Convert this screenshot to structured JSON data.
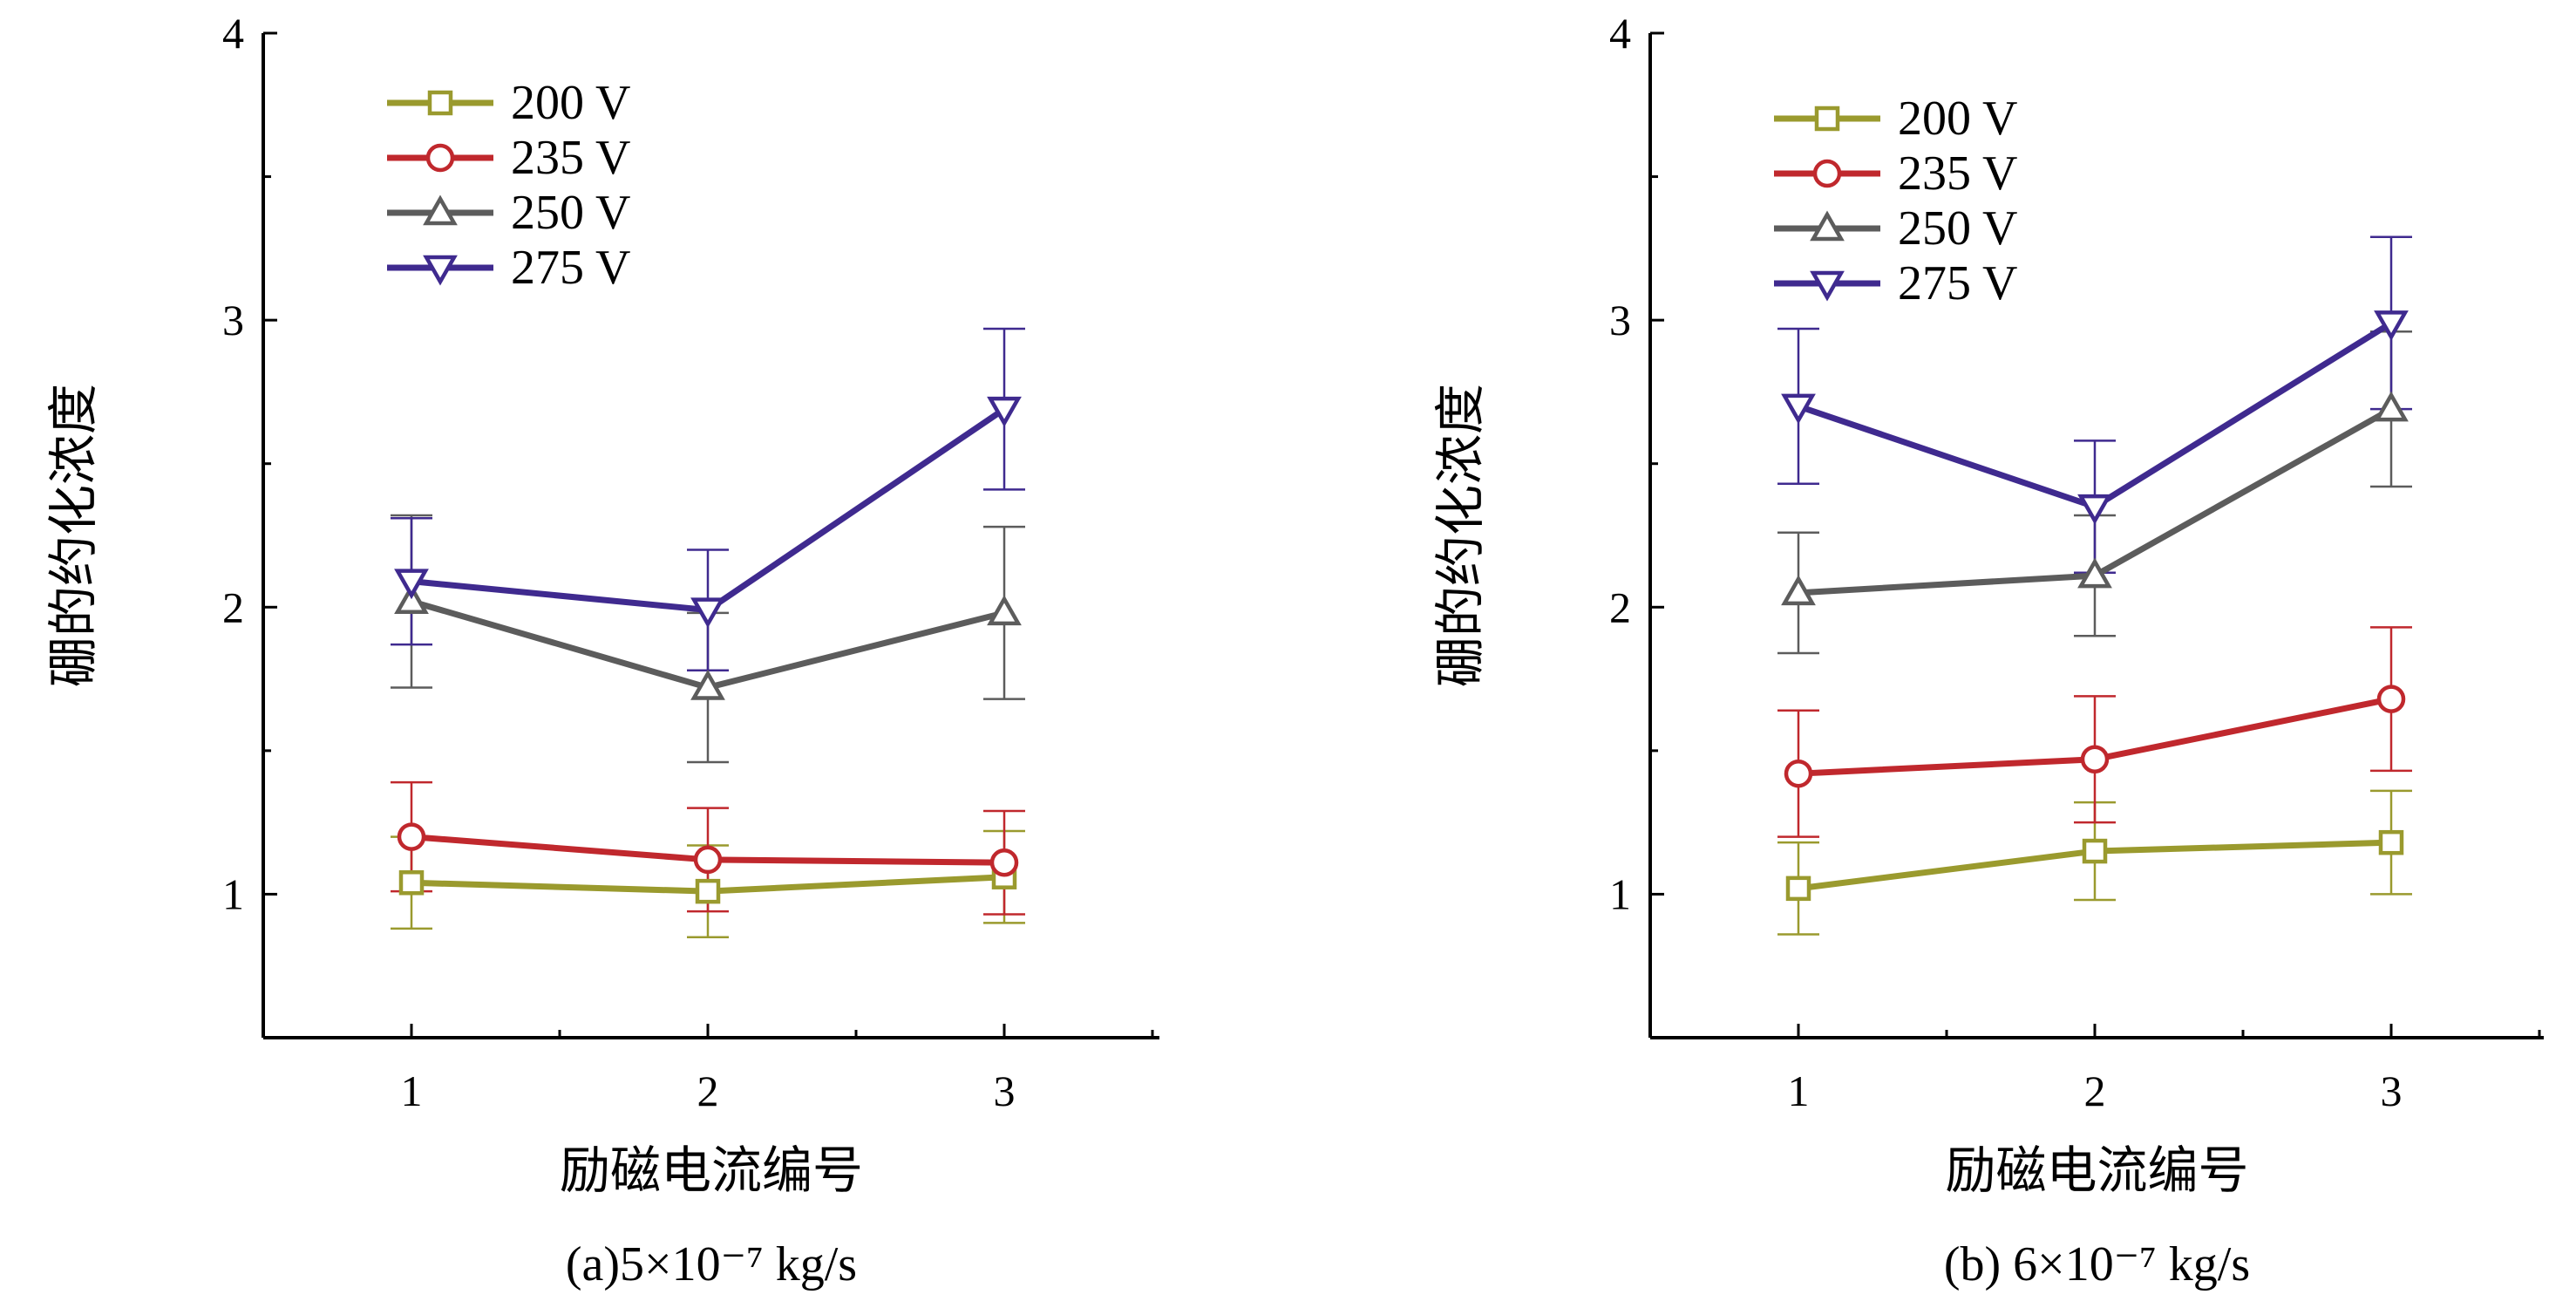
{
  "chart_data": [
    {
      "type": "line",
      "panel": "a",
      "caption": "(a)5×10⁻⁷ kg/s",
      "xlabel": "励磁电流编号",
      "ylabel": "硼的约化浓度",
      "x": [
        1,
        2,
        3
      ],
      "xticks": [
        "1",
        "2",
        "3"
      ],
      "ylim": [
        0.5,
        4
      ],
      "yticks": [
        "1",
        "2",
        "3",
        "4"
      ],
      "legend_position": "top-left",
      "series": [
        {
          "name": "200 V",
          "color": "#9a9a2e",
          "marker": "square",
          "values": [
            1.04,
            1.01,
            1.06
          ],
          "err": [
            0.16,
            0.16,
            0.16
          ]
        },
        {
          "name": "235 V",
          "color": "#c0282d",
          "marker": "circle",
          "values": [
            1.2,
            1.12,
            1.11
          ],
          "err": [
            0.19,
            0.18,
            0.18
          ]
        },
        {
          "name": "250 V",
          "color": "#5c5c5c",
          "marker": "triangle-up",
          "values": [
            2.02,
            1.72,
            1.98
          ],
          "err": [
            0.3,
            0.26,
            0.3
          ]
        },
        {
          "name": "275 V",
          "color": "#3f2a8f",
          "marker": "triangle-down",
          "values": [
            2.09,
            1.99,
            2.69
          ],
          "err": [
            0.22,
            0.21,
            0.28
          ]
        }
      ]
    },
    {
      "type": "line",
      "panel": "b",
      "caption": "(b) 6×10⁻⁷ kg/s",
      "xlabel": "励磁电流编号",
      "ylabel": "硼的约化浓度",
      "x": [
        1,
        2,
        3
      ],
      "xticks": [
        "1",
        "2",
        "3"
      ],
      "ylim": [
        0.5,
        4
      ],
      "yticks": [
        "1",
        "2",
        "3",
        "4"
      ],
      "legend_position": "top-left",
      "series": [
        {
          "name": "200 V",
          "color": "#9a9a2e",
          "marker": "square",
          "values": [
            1.02,
            1.15,
            1.18
          ],
          "err": [
            0.16,
            0.17,
            0.18
          ]
        },
        {
          "name": "235 V",
          "color": "#c0282d",
          "marker": "circle",
          "values": [
            1.42,
            1.47,
            1.68
          ],
          "err": [
            0.22,
            0.22,
            0.25
          ]
        },
        {
          "name": "250 V",
          "color": "#5c5c5c",
          "marker": "triangle-up",
          "values": [
            2.05,
            2.11,
            2.69
          ],
          "err": [
            0.21,
            0.21,
            0.27
          ]
        },
        {
          "name": "275 V",
          "color": "#3f2a8f",
          "marker": "triangle-down",
          "values": [
            2.7,
            2.35,
            2.99
          ],
          "err": [
            0.27,
            0.23,
            0.3
          ]
        }
      ]
    }
  ]
}
